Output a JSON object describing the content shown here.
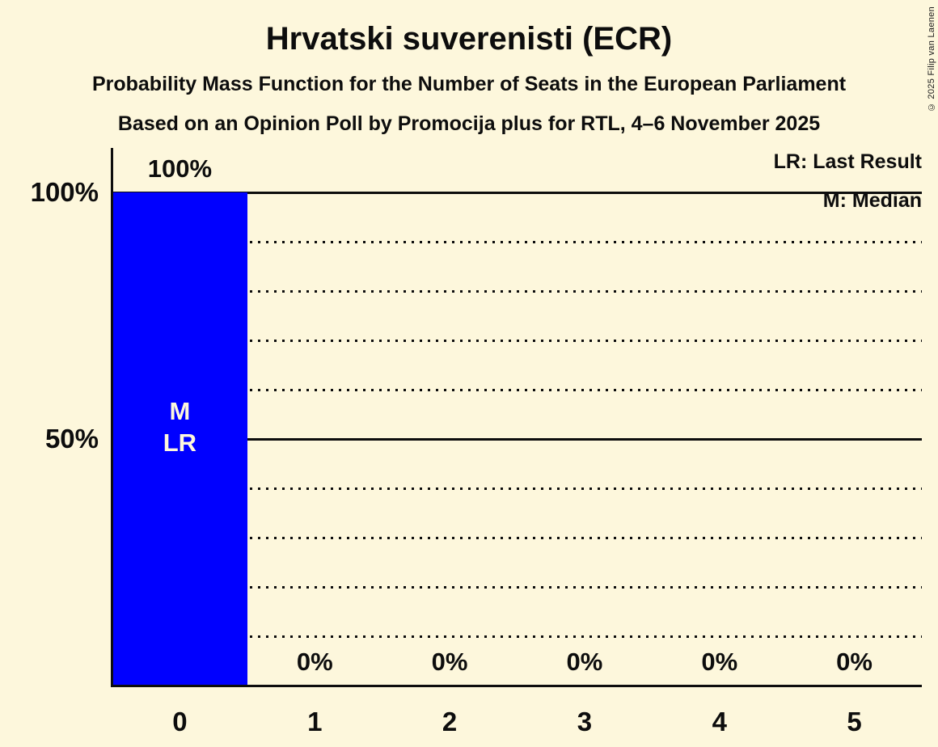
{
  "header": {
    "title": "Hrvatski suverenisti (ECR)",
    "subtitle": "Probability Mass Function for the Number of Seats in the European Parliament",
    "poll_line": "Based on an Opinion Poll by Promocija plus for RTL, 4–6 November 2025"
  },
  "legend": {
    "last_result": "LR: Last Result",
    "median": "M: Median"
  },
  "copyright": "© 2025 Filip van Laenen",
  "chart_data": {
    "type": "bar",
    "title": "Hrvatski suverenisti (ECR)",
    "categories": [
      "0",
      "1",
      "2",
      "3",
      "4",
      "5"
    ],
    "values": [
      100,
      0,
      0,
      0,
      0,
      0
    ],
    "value_labels": [
      "100%",
      "0%",
      "0%",
      "0%",
      "0%",
      "0%"
    ],
    "bar_annotations": [
      [
        "M",
        "LR"
      ],
      [],
      [],
      [],
      [],
      []
    ],
    "median_seats": 0,
    "last_result_seats": 0,
    "ylim": [
      0,
      100
    ],
    "yticks": [
      {
        "value": 100,
        "label": "100%"
      },
      {
        "value": 50,
        "label": "50%"
      }
    ],
    "solid_gridlines": [
      100,
      50
    ],
    "dotted_gridlines": [
      90,
      80,
      70,
      60,
      40,
      30,
      20,
      10
    ],
    "grid": true,
    "legend_position": "top-right",
    "colors": {
      "bar": "#0000ff",
      "background": "#fdf7dc",
      "text": "#0d0d0d",
      "bar_label": "#fdf7dc"
    }
  }
}
